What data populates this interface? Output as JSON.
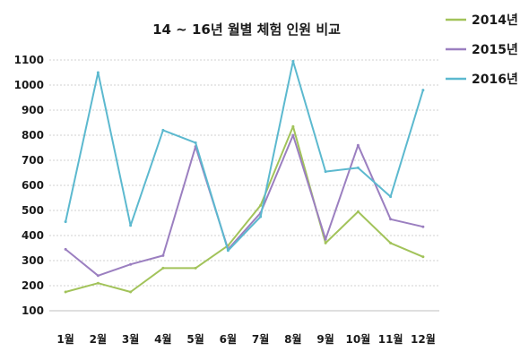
{
  "chart_data": {
    "type": "line",
    "title": "14 ~ 16년 월별 체험 인원 비교",
    "xlabel": "",
    "ylabel": "",
    "categories": [
      "1월",
      "2월",
      "3월",
      "4월",
      "5월",
      "6월",
      "7월",
      "8월",
      "9월",
      "10월",
      "11월",
      "12월"
    ],
    "ylim": [
      100,
      1100
    ],
    "yticks": [
      100,
      200,
      300,
      400,
      500,
      600,
      700,
      800,
      900,
      1000,
      1100
    ],
    "grid": true,
    "legend_position": "top-right",
    "series": [
      {
        "name": "2014년",
        "color": "#a2c35a",
        "values": [
          175,
          210,
          175,
          270,
          270,
          360,
          520,
          835,
          370,
          495,
          370,
          315
        ]
      },
      {
        "name": "2015년",
        "color": "#9b7fc0",
        "values": [
          345,
          240,
          285,
          320,
          755,
          345,
          490,
          800,
          385,
          760,
          465,
          435
        ]
      },
      {
        "name": "2016년",
        "color": "#5cb9cf",
        "values": [
          455,
          1050,
          440,
          820,
          770,
          340,
          475,
          1095,
          655,
          670,
          555,
          980
        ]
      }
    ]
  }
}
